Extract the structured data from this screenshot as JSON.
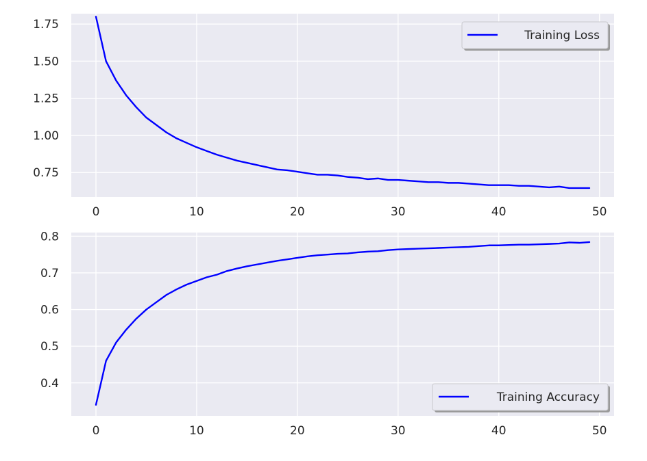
{
  "chart_data": [
    {
      "type": "line",
      "title": "",
      "xlabel": "",
      "ylabel": "",
      "xlim": [
        -2.45,
        51.45
      ],
      "ylim": [
        0.585,
        1.82
      ],
      "xticks": [
        0,
        10,
        20,
        30,
        40,
        50
      ],
      "xtick_labels": [
        "0",
        "10",
        "20",
        "30",
        "40",
        "50"
      ],
      "yticks": [
        0.75,
        1.0,
        1.25,
        1.5,
        1.75
      ],
      "ytick_labels": [
        "0.75",
        "1.00",
        "1.25",
        "1.50",
        "1.75"
      ],
      "grid": true,
      "legend_position": "upper-right",
      "series": [
        {
          "name": "Training Loss",
          "color": "#0000ff",
          "x": [
            0,
            1,
            2,
            3,
            4,
            5,
            6,
            7,
            8,
            9,
            10,
            11,
            12,
            13,
            14,
            15,
            16,
            17,
            18,
            19,
            20,
            21,
            22,
            23,
            24,
            25,
            26,
            27,
            28,
            29,
            30,
            31,
            32,
            33,
            34,
            35,
            36,
            37,
            38,
            39,
            40,
            41,
            42,
            43,
            44,
            45,
            46,
            47,
            48,
            49
          ],
          "values": [
            1.8,
            1.5,
            1.37,
            1.27,
            1.19,
            1.12,
            1.07,
            1.02,
            0.98,
            0.95,
            0.92,
            0.895,
            0.87,
            0.85,
            0.83,
            0.815,
            0.8,
            0.785,
            0.77,
            0.765,
            0.755,
            0.745,
            0.735,
            0.735,
            0.73,
            0.72,
            0.715,
            0.705,
            0.71,
            0.7,
            0.7,
            0.695,
            0.69,
            0.685,
            0.685,
            0.68,
            0.68,
            0.675,
            0.67,
            0.665,
            0.665,
            0.665,
            0.66,
            0.66,
            0.655,
            0.65,
            0.655,
            0.645,
            0.645,
            0.645
          ]
        }
      ]
    },
    {
      "type": "line",
      "title": "",
      "xlabel": "",
      "ylabel": "",
      "xlim": [
        -2.45,
        51.45
      ],
      "ylim": [
        0.31,
        0.81
      ],
      "xticks": [
        0,
        10,
        20,
        30,
        40,
        50
      ],
      "xtick_labels": [
        "0",
        "10",
        "20",
        "30",
        "40",
        "50"
      ],
      "yticks": [
        0.4,
        0.5,
        0.6,
        0.7,
        0.8
      ],
      "ytick_labels": [
        "0.4",
        "0.5",
        "0.6",
        "0.7",
        "0.8"
      ],
      "grid": true,
      "legend_position": "lower-right",
      "series": [
        {
          "name": "Training Accuracy",
          "color": "#0000ff",
          "x": [
            0,
            1,
            2,
            3,
            4,
            5,
            6,
            7,
            8,
            9,
            10,
            11,
            12,
            13,
            14,
            15,
            16,
            17,
            18,
            19,
            20,
            21,
            22,
            23,
            24,
            25,
            26,
            27,
            28,
            29,
            30,
            31,
            32,
            33,
            34,
            35,
            36,
            37,
            38,
            39,
            40,
            41,
            42,
            43,
            44,
            45,
            46,
            47,
            48,
            49
          ],
          "values": [
            0.34,
            0.46,
            0.51,
            0.545,
            0.575,
            0.6,
            0.62,
            0.64,
            0.655,
            0.668,
            0.678,
            0.688,
            0.695,
            0.705,
            0.712,
            0.718,
            0.723,
            0.728,
            0.733,
            0.737,
            0.741,
            0.745,
            0.748,
            0.75,
            0.752,
            0.753,
            0.756,
            0.758,
            0.759,
            0.762,
            0.764,
            0.765,
            0.766,
            0.767,
            0.768,
            0.769,
            0.77,
            0.771,
            0.773,
            0.775,
            0.775,
            0.776,
            0.777,
            0.777,
            0.778,
            0.779,
            0.78,
            0.783,
            0.782,
            0.784
          ]
        }
      ]
    }
  ]
}
